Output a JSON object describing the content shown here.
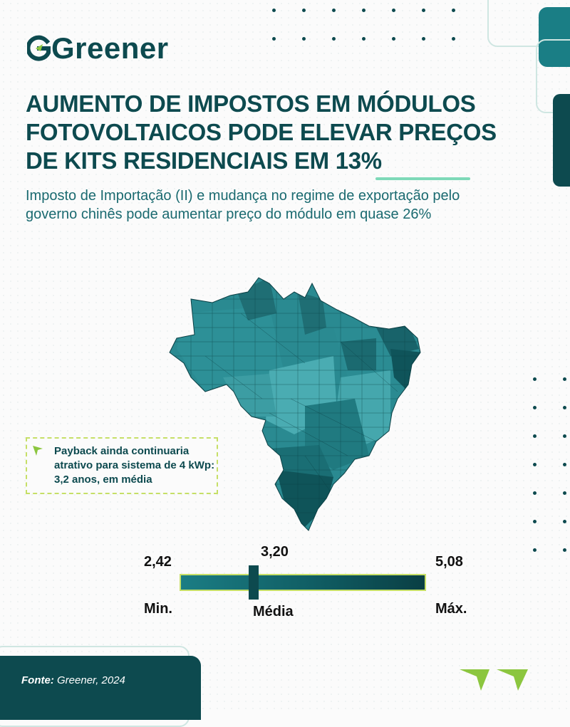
{
  "brand": {
    "name": "Greener",
    "logo_letter": "G"
  },
  "headline": "AUMENTO DE IMPOSTOS EM MÓDULOS FOTOVOLTAICOS PODE ELEVAR PREÇOS DE KITS RESIDENCIAIS EM 13%",
  "subtitle": "Imposto de Importação (II) e mudança no regime de exportação pelo governo chinês pode aumentar preço do módulo em quase 26%",
  "callout": {
    "icon": "arrow-pointer-icon",
    "text": "Payback ainda continuaria atrativo para sistema de 4 kWp: 3,2 anos, em média"
  },
  "scale": {
    "min_value": "2,42",
    "mean_value": "3,20",
    "max_value": "5,08",
    "min_label": "Min.",
    "mean_label": "Média",
    "max_label": "Máx.",
    "mean_position_fraction": 0.3
  },
  "footer": {
    "source_label": "Fonte:",
    "source_text": "Greener, 2024"
  },
  "colors": {
    "primary": "#0d4a4f",
    "teal": "#1a7e85",
    "accent_lime": "#c6df67",
    "accent_mint": "#7ed9b8"
  },
  "icons": {
    "logo": "greener-logo-icon",
    "corner": "double-arrow-icon",
    "map": "brazil-map"
  }
}
